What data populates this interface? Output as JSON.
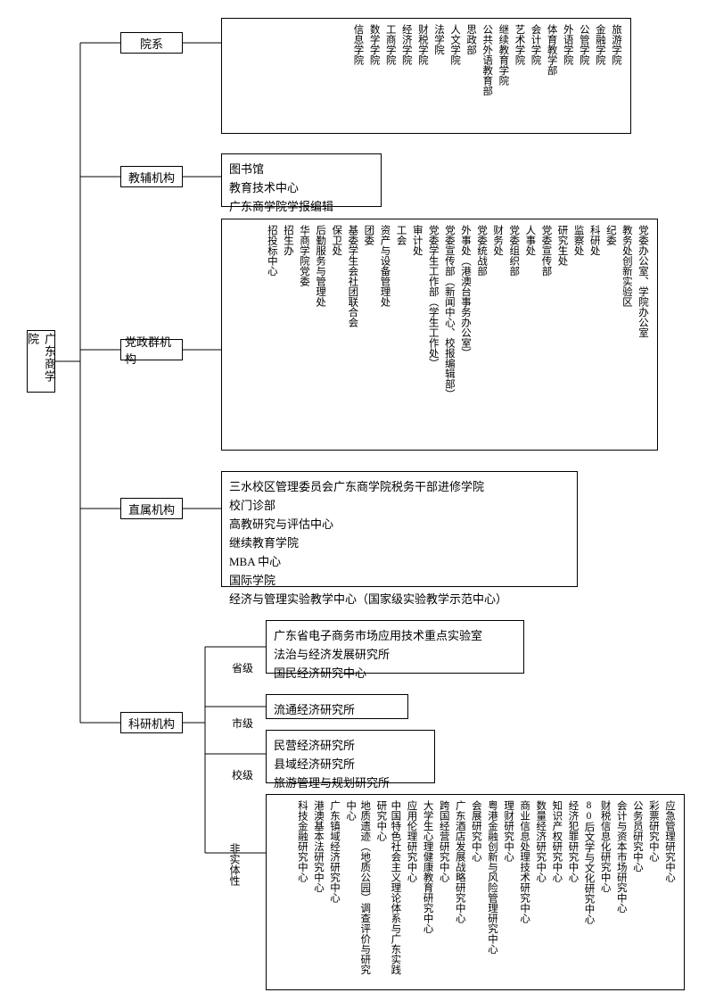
{
  "root": {
    "label": "广东商学院"
  },
  "branches": [
    {
      "key": "faculties",
      "label": "院系"
    },
    {
      "key": "teachAux",
      "label": "教辅机构"
    },
    {
      "key": "admin",
      "label": "党政群机构"
    },
    {
      "key": "direct",
      "label": "直属机构"
    },
    {
      "key": "research",
      "label": "科研机构"
    }
  ],
  "faculties": {
    "items": [
      "旅游学院",
      "金融学院",
      "公管学院",
      "外语学院",
      "体育教学部",
      "会计学院",
      "艺术学院",
      "继续教育学院",
      "公共外语教育部",
      "思政部",
      "人文学院",
      "法学院",
      "财税学院",
      "经济学院",
      "工商学院",
      "数学学院",
      "信息学院"
    ]
  },
  "teachAux": {
    "items": [
      "图书馆",
      "教育技术中心",
      "广东商学院学报编辑"
    ]
  },
  "admin": {
    "items": [
      "党委办公室、学院办公室",
      "教务处创新实验区",
      "纪委",
      "科研处",
      "监察处",
      "研究生处",
      "党委宣传部",
      "人事处",
      "党委组织部",
      "财务处",
      "党委统战部",
      "外事处（港澳台事务办公室）",
      "党委宣传部（新闻中心、校报编辑部）",
      "党委学生工作部（学生工作处）",
      "审计处",
      "工会",
      "资产与设备管理处",
      "团委",
      "基委学生会社团联合会",
      "保卫处",
      "后勤服务与管理处",
      "华商学院党委",
      "招生办",
      "招投标中心"
    ]
  },
  "direct": {
    "items": [
      "三水校区管理委员会广东商学院税务干部进修学院",
      "校门诊部",
      "高教研究与评估中心",
      "继续教育学院",
      "MBA 中心",
      "国际学院",
      "经济与管理实验教学中心（国家级实验教学示范中心）"
    ]
  },
  "research": {
    "levels": [
      {
        "label": "省级",
        "items": [
          "广东省电子商务市场应用技术重点实验室",
          "法治与经济发展研究所",
          "国民经济研究中心"
        ]
      },
      {
        "label": "市级",
        "items": [
          "流通经济研究所"
        ]
      },
      {
        "label": "校级",
        "items": [
          "民营经济研究所",
          "县域经济研究所",
          "旅游管理与规划研究所"
        ]
      },
      {
        "label": "非实体性",
        "items": [
          "应急管理研究中心",
          "彩票研究中心",
          "公务员研究中心",
          "会计与资本市场研究中心",
          "财税信息化研究中心",
          "80后文学与文化研究中心",
          "经济犯罪研究中心",
          "知识产权研究中心",
          "数量经济研究中心",
          "商业信息处理技术研究中心",
          "理财研究中心",
          "粤港金融创新与风险管理研究中心",
          "会展研究中心",
          "广东酒店发展战略研究中心",
          "跨国经营研究中心",
          "大学生心理健康教育研究中心",
          "应用伦理研究中心",
          "中国特色社会主义理论体系与广东实践研究中心",
          "地质遗迹（地质公园）调查评价与研究中心",
          "广东镇域经济研究中心",
          "港澳基本法研究中心",
          "科技金融研究中心"
        ]
      }
    ]
  },
  "style": {
    "lineColor": "#000000",
    "lineWidth": 1,
    "bg": "#ffffff",
    "font": "SimSun"
  }
}
